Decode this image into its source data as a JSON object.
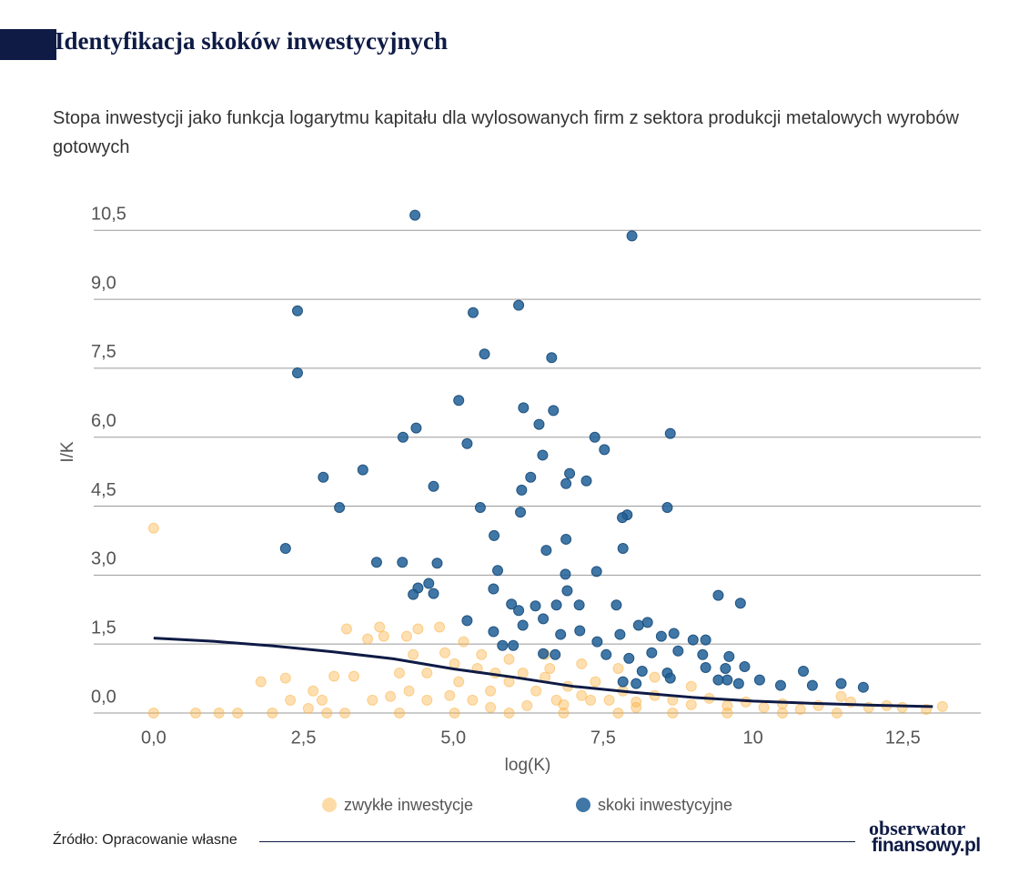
{
  "chart_data": {
    "type": "scatter",
    "title": "Identyfikacja skoków inwestycyjnych",
    "subtitle": "Stopa inwestycji jako funkcja logarytmu kapitału dla wylosowanych firm z sektora produkcji metalowych wyrobów gotowych",
    "x_label": "log(K)",
    "y_label": "I/K",
    "xlim": [
      -1.0,
      13.8
    ],
    "ylim": [
      0,
      11.0
    ],
    "xticks": [
      {
        "value": 0,
        "label": "0,0"
      },
      {
        "value": 2.5,
        "label": "2,5"
      },
      {
        "value": 5,
        "label": "5,0"
      },
      {
        "value": 7.5,
        "label": "7,5"
      },
      10,
      {
        "value": 12.5,
        "label": "12,5"
      }
    ],
    "yticks": [
      {
        "value": 0,
        "label": "0,0"
      },
      {
        "value": 1.5,
        "label": "1,5"
      },
      {
        "value": 3,
        "label": "3,0"
      },
      {
        "value": 4.5,
        "label": "4,5"
      },
      {
        "value": 6,
        "label": "6,0"
      },
      {
        "value": 7.5,
        "label": "7,5"
      },
      {
        "value": 9,
        "label": "9,0"
      },
      {
        "value": 10.5,
        "label": "10,5"
      }
    ],
    "grid": true,
    "series": [
      {
        "name": "zwykłe inwestycje",
        "color": "#fbb03b",
        "x": [
          0.0,
          0.0,
          0.7,
          1.09,
          1.4,
          1.79,
          1.98,
          2.2,
          2.28,
          2.66,
          2.81,
          3.22,
          3.01,
          3.34,
          3.57,
          3.77,
          3.84,
          4.1,
          4.22,
          4.41,
          4.77,
          4.33,
          4.56,
          4.86,
          5.17,
          5.4,
          5.7,
          3.65,
          3.95,
          4.26,
          4.56,
          4.94,
          5.09,
          5.32,
          5.62,
          5.93,
          6.16,
          6.38,
          6.53,
          6.72,
          6.91,
          7.14,
          7.37,
          7.6,
          7.83,
          8.05,
          8.36,
          8.66,
          8.97,
          9.27,
          9.57,
          9.88,
          10.18,
          10.49,
          10.79,
          11.09,
          11.47,
          11.63,
          11.93,
          12.23,
          12.49,
          12.89,
          13.16,
          3.19,
          4.1,
          5.02,
          5.93,
          6.84,
          7.75,
          8.66,
          9.57,
          10.49,
          11.4,
          7.14,
          6.53,
          5.93,
          7.75,
          8.36,
          8.97,
          5.02,
          5.47,
          6.61,
          7.29,
          6.84,
          6.23,
          5.62,
          8.05,
          2.89,
          2.58
        ],
        "values": [
          4.02,
          0,
          0,
          0,
          0,
          0.68,
          0,
          0.76,
          0.28,
          0.48,
          0.28,
          1.83,
          0.8,
          0.8,
          1.61,
          1.87,
          1.67,
          0.87,
          1.67,
          1.83,
          1.87,
          1.27,
          0.87,
          1.31,
          1.55,
          0.97,
          0.87,
          0.28,
          0.36,
          0.48,
          0.28,
          0.38,
          0.68,
          0.28,
          0.48,
          0.68,
          0.87,
          0.48,
          0.78,
          0.28,
          0.58,
          0.38,
          0.68,
          0.28,
          0.48,
          0.24,
          0.38,
          0.28,
          0.18,
          0.32,
          0.16,
          0.24,
          0.12,
          0.2,
          0.08,
          0.16,
          0.36,
          0.24,
          0.12,
          0.16,
          0.12,
          0.08,
          0.14,
          0,
          0,
          0,
          0,
          0,
          0,
          0,
          0,
          0,
          0,
          1.07,
          1.27,
          1.17,
          0.97,
          0.78,
          0.58,
          1.07,
          1.27,
          0.97,
          0.28,
          0.18,
          0.16,
          0.12,
          0.12,
          0,
          0.1
        ]
      },
      {
        "name": "skoki inwestycyjne",
        "color": "#1f5f96",
        "x": [
          4.36,
          7.98,
          2.4,
          2.4,
          5.33,
          6.09,
          5.52,
          6.64,
          5.09,
          6.17,
          6.67,
          4.38,
          4.16,
          5.23,
          6.43,
          7.36,
          7.52,
          8.62,
          6.49,
          2.83,
          3.49,
          6.94,
          7.22,
          6.29,
          6.88,
          4.67,
          6.14,
          3.1,
          5.45,
          6.12,
          8.57,
          7.9,
          7.82,
          2.2,
          5.68,
          6.88,
          7.83,
          6.55,
          3.72,
          4.15,
          4.73,
          5.74,
          7.39,
          6.87,
          4.59,
          4.41,
          4.33,
          4.67,
          5.67,
          6.9,
          5.97,
          6.37,
          6.09,
          6.72,
          7.1,
          7.72,
          5.23,
          6.16,
          6.5,
          5.67,
          6.79,
          7.11,
          8.24,
          8.09,
          7.78,
          8.68,
          5.82,
          6.0,
          6.5,
          7.4,
          8.47,
          9.0,
          9.21,
          9.42,
          9.79,
          9.6,
          6.7,
          7.55,
          7.93,
          8.31,
          8.75,
          9.16,
          8.15,
          8.57,
          9.21,
          9.54,
          9.86,
          10.84,
          9.57,
          10.11,
          10.46,
          10.99,
          11.47,
          11.84,
          8.62,
          9.42,
          9.76,
          8.05,
          7.83
        ],
        "values": [
          10.83,
          10.38,
          8.75,
          7.4,
          8.71,
          8.87,
          7.81,
          7.73,
          6.8,
          6.64,
          6.58,
          6.2,
          6.0,
          5.86,
          6.28,
          6.0,
          5.73,
          6.08,
          5.61,
          5.13,
          5.29,
          5.21,
          5.05,
          5.13,
          4.99,
          4.93,
          4.85,
          4.47,
          4.47,
          4.37,
          4.47,
          4.31,
          4.25,
          3.58,
          3.86,
          3.78,
          3.58,
          3.54,
          3.28,
          3.28,
          3.26,
          3.1,
          3.08,
          3.02,
          2.82,
          2.72,
          2.58,
          2.6,
          2.7,
          2.66,
          2.37,
          2.33,
          2.23,
          2.35,
          2.35,
          2.35,
          2.01,
          1.91,
          2.05,
          1.77,
          1.71,
          1.79,
          1.97,
          1.91,
          1.71,
          1.73,
          1.47,
          1.47,
          1.29,
          1.55,
          1.67,
          1.59,
          1.59,
          2.56,
          2.39,
          1.23,
          1.27,
          1.27,
          1.19,
          1.31,
          1.35,
          1.27,
          0.91,
          0.87,
          0.99,
          0.97,
          1.01,
          0.91,
          0.72,
          0.72,
          0.6,
          0.6,
          0.64,
          0.56,
          0.76,
          0.72,
          0.64,
          0.64,
          0.68
        ]
      }
    ],
    "lines": [
      {
        "color": "#0f1b45",
        "x": [
          0,
          1,
          2,
          3,
          4,
          5,
          6,
          7,
          8,
          9,
          10,
          11,
          12,
          13
        ],
        "values": [
          1.63,
          1.56,
          1.46,
          1.33,
          1.18,
          0.96,
          0.78,
          0.58,
          0.45,
          0.34,
          0.26,
          0.21,
          0.17,
          0.14
        ]
      }
    ]
  },
  "source": "Źródło: Opracowanie własne",
  "logo": {
    "line1": "obserwator",
    "line2": "finansowy.pl"
  }
}
